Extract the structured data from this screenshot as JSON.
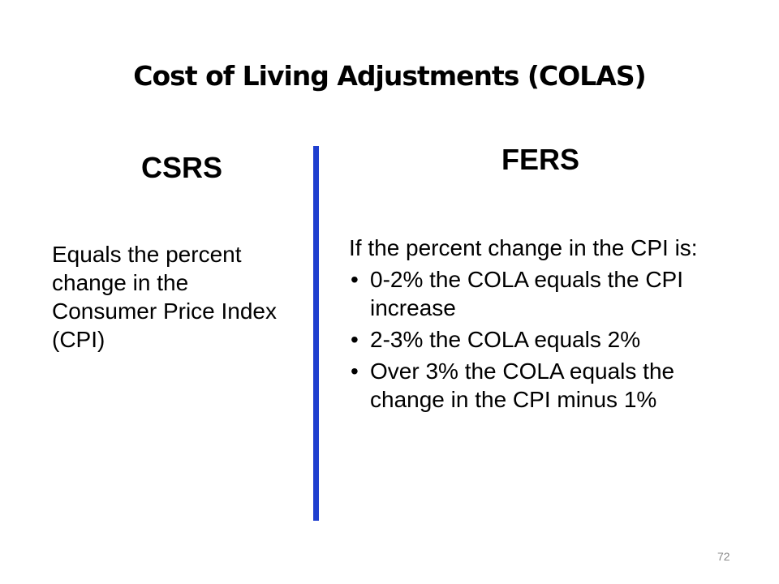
{
  "title": "Cost of Living Adjustments (COLAS)",
  "csrs": {
    "heading": "CSRS",
    "text": "Equals the percent change in the Consumer Price Index (CPI)"
  },
  "fers": {
    "heading": "FERS",
    "intro": "If the percent change in the CPI is:",
    "bullets": [
      "0-2% the COLA equals the CPI increase",
      "2-3% the COLA equals 2%",
      "Over 3% the COLA equals the change in the CPI minus 1%"
    ]
  },
  "page_number": "72"
}
